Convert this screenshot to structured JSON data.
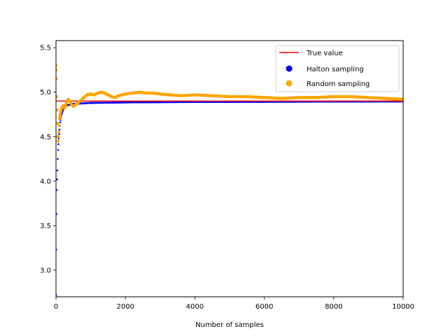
{
  "chart_data": {
    "type": "scatter",
    "title": "",
    "xlabel": "Number of samples",
    "ylabel": "",
    "xlim": [
      0,
      10000
    ],
    "ylim": [
      2.7,
      5.58
    ],
    "x_ticks": [
      0,
      2000,
      4000,
      6000,
      8000,
      10000
    ],
    "x_tick_labels": [
      "0",
      "2000",
      "4000",
      "6000",
      "8000",
      "10000"
    ],
    "y_ticks": [
      3.0,
      3.5,
      4.0,
      4.5,
      5.0,
      5.5
    ],
    "y_tick_labels": [
      "3.0",
      "3.5",
      "4.0",
      "4.5",
      "5.0",
      "5.5"
    ],
    "grid": false,
    "legend_position": "upper right",
    "true_value": {
      "name": "True value",
      "value": 4.9,
      "color": "#ff0000",
      "style": "line"
    },
    "series": [
      {
        "name": "Halton sampling",
        "color": "#0000ff",
        "points": [
          [
            1,
            2.72
          ],
          [
            5,
            3.23
          ],
          [
            10,
            3.63
          ],
          [
            20,
            3.9
          ],
          [
            30,
            4.02
          ],
          [
            40,
            4.12
          ],
          [
            50,
            4.25
          ],
          [
            60,
            4.35
          ],
          [
            80,
            4.48
          ],
          [
            100,
            4.58
          ],
          [
            120,
            4.66
          ],
          [
            150,
            4.74
          ],
          [
            200,
            4.8
          ],
          [
            250,
            4.83
          ],
          [
            300,
            4.85
          ],
          [
            400,
            4.86
          ],
          [
            500,
            4.87
          ],
          [
            600,
            4.87
          ],
          [
            800,
            4.875
          ],
          [
            1000,
            4.88
          ],
          [
            1500,
            4.882
          ],
          [
            2000,
            4.885
          ],
          [
            3000,
            4.888
          ],
          [
            4000,
            4.89
          ],
          [
            5000,
            4.891
          ],
          [
            6000,
            4.892
          ],
          [
            7000,
            4.893
          ],
          [
            8000,
            4.894
          ],
          [
            9000,
            4.895
          ],
          [
            10000,
            4.896
          ]
        ]
      },
      {
        "name": "Random sampling",
        "color": "#ffa500",
        "points": [
          [
            1,
            5.3
          ],
          [
            5,
            5.25
          ],
          [
            10,
            5.15
          ],
          [
            20,
            4.95
          ],
          [
            30,
            4.8
          ],
          [
            40,
            4.65
          ],
          [
            50,
            4.5
          ],
          [
            60,
            4.45
          ],
          [
            80,
            4.55
          ],
          [
            100,
            4.7
          ],
          [
            120,
            4.75
          ],
          [
            150,
            4.8
          ],
          [
            200,
            4.85
          ],
          [
            250,
            4.82
          ],
          [
            300,
            4.88
          ],
          [
            350,
            4.92
          ],
          [
            400,
            4.9
          ],
          [
            450,
            4.86
          ],
          [
            500,
            4.84
          ],
          [
            600,
            4.87
          ],
          [
            700,
            4.9
          ],
          [
            800,
            4.94
          ],
          [
            900,
            4.97
          ],
          [
            1000,
            4.98
          ],
          [
            1100,
            4.97
          ],
          [
            1200,
            4.99
          ],
          [
            1300,
            5.0
          ],
          [
            1400,
            4.99
          ],
          [
            1500,
            4.97
          ],
          [
            1600,
            4.95
          ],
          [
            1700,
            4.94
          ],
          [
            1800,
            4.96
          ],
          [
            2000,
            4.98
          ],
          [
            2200,
            4.99
          ],
          [
            2400,
            5.0
          ],
          [
            2600,
            4.99
          ],
          [
            2800,
            4.99
          ],
          [
            3000,
            4.98
          ],
          [
            3300,
            4.97
          ],
          [
            3600,
            4.96
          ],
          [
            4000,
            4.97
          ],
          [
            4500,
            4.96
          ],
          [
            5000,
            4.95
          ],
          [
            5500,
            4.95
          ],
          [
            6000,
            4.94
          ],
          [
            6500,
            4.93
          ],
          [
            7000,
            4.94
          ],
          [
            7500,
            4.94
          ],
          [
            8000,
            4.95
          ],
          [
            8500,
            4.95
          ],
          [
            9000,
            4.94
          ],
          [
            9500,
            4.93
          ],
          [
            10000,
            4.92
          ]
        ]
      }
    ]
  }
}
